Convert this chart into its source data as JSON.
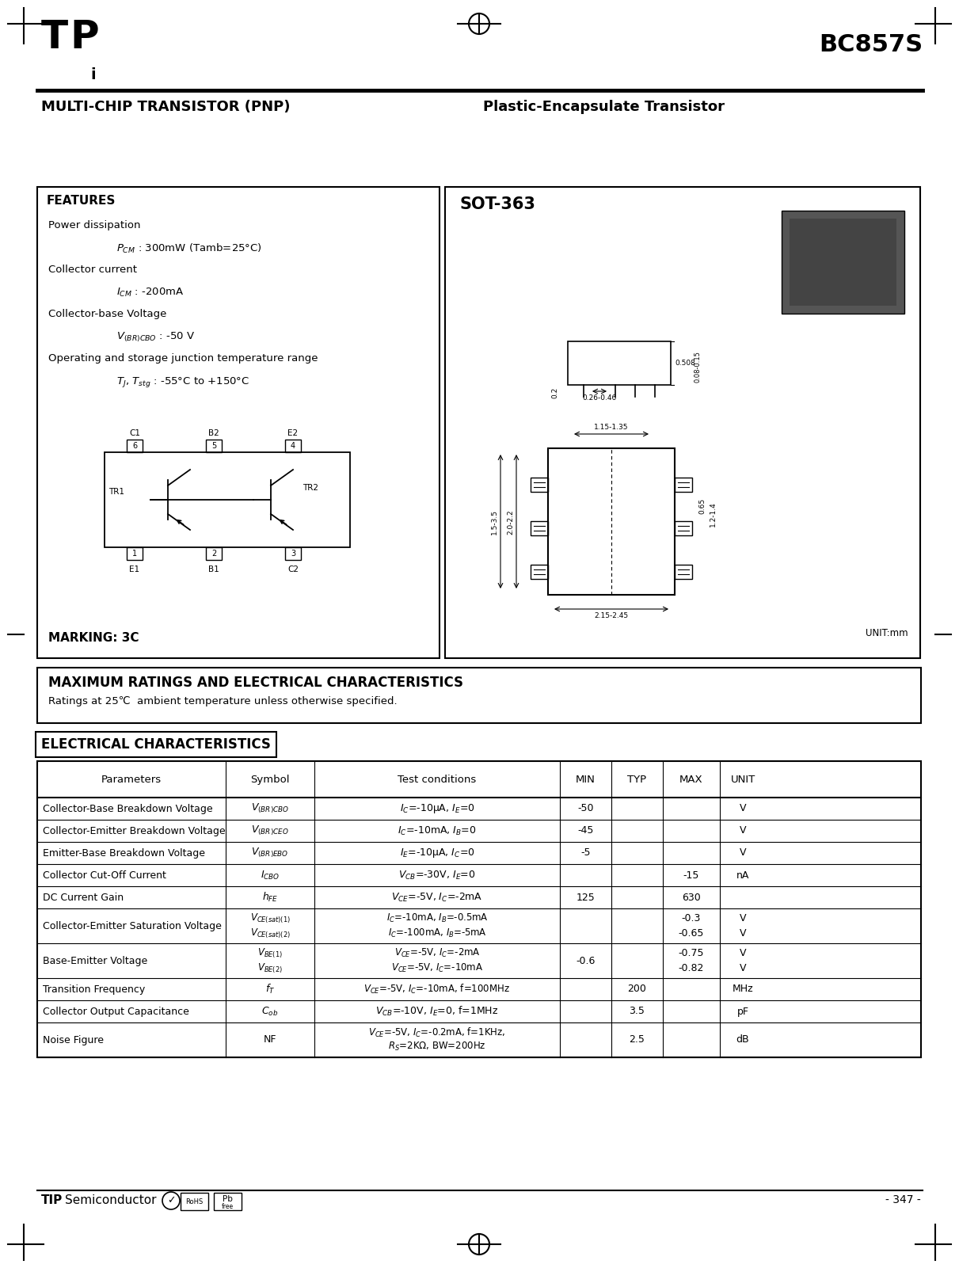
{
  "page_title": "BC857S",
  "subtitle1": "MULTI-CHIP TRANSISTOR (PNP)",
  "subtitle2": "Plastic-Encapsulate Transistor",
  "features_title": "FEATURES",
  "marking": "MARKING: 3C",
  "package": "SOT-363",
  "max_ratings_title": "MAXIMUM RATINGS AND ELECTRICAL CHARACTERISTICS",
  "max_ratings_subtitle": "Ratings at 25℃  ambient temperature unless otherwise specified.",
  "elec_title": "ELECTRICAL CHARACTERISTICS",
  "table_headers": [
    "Parameters",
    "Symbol",
    "Test conditions",
    "MIN",
    "TYP",
    "MAX",
    "UNIT"
  ],
  "footer_right": "- 347 -",
  "bg_color": "#ffffff"
}
